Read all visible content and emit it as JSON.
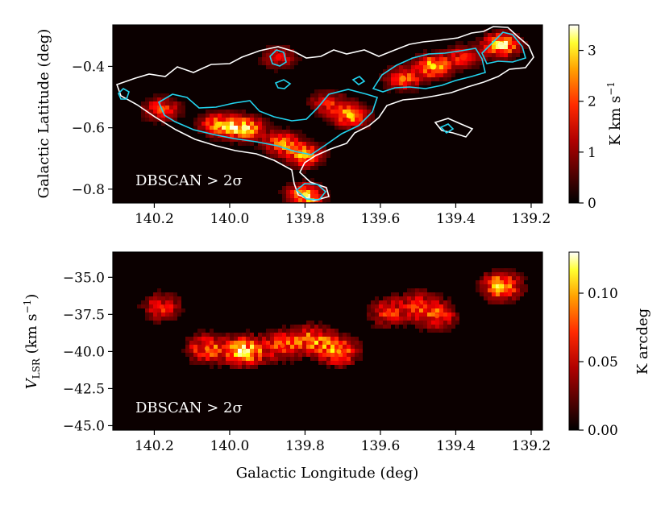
{
  "chart_data": [
    {
      "type": "heatmap",
      "panel": "moment-0 map",
      "annotation": "DBSCAN > 2σ",
      "xlim": [
        140.31,
        139.17
      ],
      "ylim": [
        -0.845,
        -0.265
      ],
      "xticks": [
        140.2,
        140.0,
        139.8,
        139.6,
        139.4,
        139.2
      ],
      "xtick_labels": [
        "140.2",
        "140.0",
        "139.8",
        "139.6",
        "139.4",
        "139.2"
      ],
      "yticks": [
        -0.4,
        -0.6,
        -0.8
      ],
      "ytick_labels": [
        "−0.4",
        "−0.6",
        "−0.8"
      ],
      "xlabel": "",
      "ylabel": "Galactic Latitude (deg)",
      "colorbar": {
        "label": "K km s",
        "label_exp": "−1",
        "range": [
          0,
          3.5
        ],
        "ticks": [
          0,
          1,
          2,
          3
        ],
        "tick_labels": [
          "0",
          "1",
          "2",
          "3"
        ]
      },
      "contours": [
        {
          "name": "outer",
          "color": "#ffffff"
        },
        {
          "name": "inner",
          "color": "#22d3ee"
        }
      ],
      "sources": [
        {
          "l": 140.18,
          "b": -0.54,
          "peak": 2.0
        },
        {
          "l": 140.03,
          "b": -0.59,
          "peak": 2.6
        },
        {
          "l": 139.96,
          "b": -0.6,
          "peak": 3.2
        },
        {
          "l": 139.86,
          "b": -0.65,
          "peak": 2.4
        },
        {
          "l": 139.8,
          "b": -0.69,
          "peak": 2.6
        },
        {
          "l": 139.8,
          "b": -0.82,
          "peak": 3.0
        },
        {
          "l": 139.68,
          "b": -0.56,
          "peak": 2.7
        },
        {
          "l": 139.74,
          "b": -0.52,
          "peak": 1.6
        },
        {
          "l": 139.87,
          "b": -0.37,
          "peak": 1.4
        },
        {
          "l": 139.54,
          "b": -0.44,
          "peak": 2.2
        },
        {
          "l": 139.46,
          "b": -0.4,
          "peak": 2.8
        },
        {
          "l": 139.38,
          "b": -0.37,
          "peak": 1.6
        },
        {
          "l": 139.28,
          "b": -0.33,
          "peak": 3.3
        }
      ]
    },
    {
      "type": "heatmap",
      "panel": "position-velocity diagram",
      "annotation": "DBSCAN > 2σ",
      "xlim": [
        140.31,
        139.17
      ],
      "ylim": [
        -45.3,
        -33.3
      ],
      "xticks": [
        140.2,
        140.0,
        139.8,
        139.6,
        139.4,
        139.2
      ],
      "xtick_labels": [
        "140.2",
        "140.0",
        "139.8",
        "139.6",
        "139.4",
        "139.2"
      ],
      "yticks": [
        -35.0,
        -37.5,
        -40.0,
        -42.5,
        -45.0
      ],
      "ytick_labels": [
        "−35.0",
        "−37.5",
        "−40.0",
        "−42.5",
        "−45.0"
      ],
      "xlabel": "Galactic Longitude (deg)",
      "ylabel_main": "V",
      "ylabel_sub": "LSR",
      "ylabel_unit": " (km s",
      "ylabel_exp": "−1",
      "ylabel_close": ")",
      "colorbar": {
        "label": "K arcdeg",
        "range": [
          0,
          0.13
        ],
        "ticks": [
          0.0,
          0.05,
          0.1
        ],
        "tick_labels": [
          "0.00",
          "0.05",
          "0.10"
        ]
      },
      "sources": [
        {
          "l": 140.18,
          "v": -37.0,
          "peak": 0.06
        },
        {
          "l": 139.96,
          "v": -40.0,
          "peak": 0.12
        },
        {
          "l": 140.06,
          "v": -39.8,
          "peak": 0.08
        },
        {
          "l": 139.86,
          "v": -39.6,
          "peak": 0.07
        },
        {
          "l": 139.78,
          "v": -39.2,
          "peak": 0.08
        },
        {
          "l": 139.71,
          "v": -40.0,
          "peak": 0.09
        },
        {
          "l": 139.58,
          "v": -37.4,
          "peak": 0.06
        },
        {
          "l": 139.45,
          "v": -37.6,
          "peak": 0.07
        },
        {
          "l": 139.5,
          "v": -36.8,
          "peak": 0.05
        },
        {
          "l": 139.28,
          "v": -35.6,
          "peak": 0.1
        }
      ]
    }
  ]
}
